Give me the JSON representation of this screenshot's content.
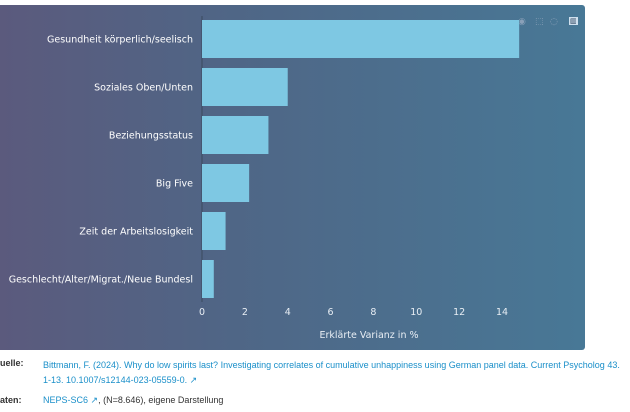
{
  "chart_data": {
    "type": "bar",
    "orientation": "horizontal",
    "categories": [
      "Gesundheit körperlich/seelisch",
      "Soziales Oben/Unten",
      "Beziehungsstatus",
      "Big Five",
      "Zeit der Arbeitslosigkeit",
      "Geschlecht/Alter/Migrat./Neue Bundesl"
    ],
    "values": [
      14.8,
      4.0,
      3.1,
      2.2,
      1.1,
      0.55
    ],
    "xlabel": "Erklärte Varianz in %",
    "xlim": [
      0,
      15.5
    ],
    "xticks": [
      "0",
      "2",
      "4",
      "6",
      "8",
      "10",
      "12",
      "14"
    ],
    "bar_color": "#7ec8e3"
  },
  "source": {
    "quelle_label": "uelle:",
    "quelle_text": "Bittmann, F. (2024). Why do low spirits last? Investigating correlates of cumulative unhappiness using German panel data. Current Psycholog",
    "quelle_text2": "43. 1-13. 10.1007/s12144-023-05559-0.",
    "daten_label": "aten:",
    "daten_link": "NEPS-SC6",
    "daten_rest": ", (N=8.646), eigene Darstellung"
  }
}
